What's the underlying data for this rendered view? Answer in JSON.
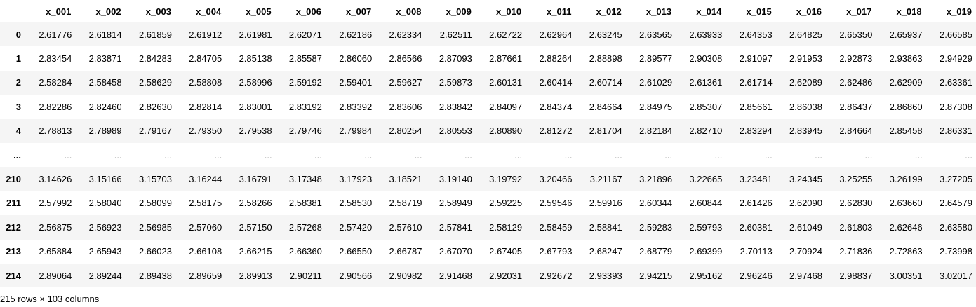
{
  "table": {
    "columns": [
      "x_001",
      "x_002",
      "x_003",
      "x_004",
      "x_005",
      "x_006",
      "x_007",
      "x_008",
      "x_009",
      "x_010",
      "x_011",
      "x_012",
      "x_013",
      "x_014",
      "x_015",
      "x_016",
      "x_017",
      "x_018",
      "x_019"
    ],
    "rows": [
      {
        "index": "0",
        "values": [
          "2.61776",
          "2.61814",
          "2.61859",
          "2.61912",
          "2.61981",
          "2.62071",
          "2.62186",
          "2.62334",
          "2.62511",
          "2.62722",
          "2.62964",
          "2.63245",
          "2.63565",
          "2.63933",
          "2.64353",
          "2.64825",
          "2.65350",
          "2.65937",
          "2.66585"
        ]
      },
      {
        "index": "1",
        "values": [
          "2.83454",
          "2.83871",
          "2.84283",
          "2.84705",
          "2.85138",
          "2.85587",
          "2.86060",
          "2.86566",
          "2.87093",
          "2.87661",
          "2.88264",
          "2.88898",
          "2.89577",
          "2.90308",
          "2.91097",
          "2.91953",
          "2.92873",
          "2.93863",
          "2.94929"
        ]
      },
      {
        "index": "2",
        "values": [
          "2.58284",
          "2.58458",
          "2.58629",
          "2.58808",
          "2.58996",
          "2.59192",
          "2.59401",
          "2.59627",
          "2.59873",
          "2.60131",
          "2.60414",
          "2.60714",
          "2.61029",
          "2.61361",
          "2.61714",
          "2.62089",
          "2.62486",
          "2.62909",
          "2.63361"
        ]
      },
      {
        "index": "3",
        "values": [
          "2.82286",
          "2.82460",
          "2.82630",
          "2.82814",
          "2.83001",
          "2.83192",
          "2.83392",
          "2.83606",
          "2.83842",
          "2.84097",
          "2.84374",
          "2.84664",
          "2.84975",
          "2.85307",
          "2.85661",
          "2.86038",
          "2.86437",
          "2.86860",
          "2.87308"
        ]
      },
      {
        "index": "4",
        "values": [
          "2.78813",
          "2.78989",
          "2.79167",
          "2.79350",
          "2.79538",
          "2.79746",
          "2.79984",
          "2.80254",
          "2.80553",
          "2.80890",
          "2.81272",
          "2.81704",
          "2.82184",
          "2.82710",
          "2.83294",
          "2.83945",
          "2.84664",
          "2.85458",
          "2.86331"
        ]
      },
      {
        "index": "...",
        "values": [
          "...",
          "...",
          "...",
          "...",
          "...",
          "...",
          "...",
          "...",
          "...",
          "...",
          "...",
          "...",
          "...",
          "...",
          "...",
          "...",
          "...",
          "...",
          "..."
        ],
        "ellipsis": true
      },
      {
        "index": "210",
        "values": [
          "3.14626",
          "3.15166",
          "3.15703",
          "3.16244",
          "3.16791",
          "3.17348",
          "3.17923",
          "3.18521",
          "3.19140",
          "3.19792",
          "3.20466",
          "3.21167",
          "3.21896",
          "3.22665",
          "3.23481",
          "3.24345",
          "3.25255",
          "3.26199",
          "3.27205"
        ]
      },
      {
        "index": "211",
        "values": [
          "2.57992",
          "2.58040",
          "2.58099",
          "2.58175",
          "2.58266",
          "2.58381",
          "2.58530",
          "2.58719",
          "2.58949",
          "2.59225",
          "2.59546",
          "2.59916",
          "2.60344",
          "2.60844",
          "2.61426",
          "2.62090",
          "2.62830",
          "2.63660",
          "2.64579"
        ]
      },
      {
        "index": "212",
        "values": [
          "2.56875",
          "2.56923",
          "2.56985",
          "2.57060",
          "2.57150",
          "2.57268",
          "2.57420",
          "2.57610",
          "2.57841",
          "2.58129",
          "2.58459",
          "2.58841",
          "2.59283",
          "2.59793",
          "2.60381",
          "2.61049",
          "2.61803",
          "2.62646",
          "2.63580"
        ]
      },
      {
        "index": "213",
        "values": [
          "2.65884",
          "2.65943",
          "2.66023",
          "2.66108",
          "2.66215",
          "2.66360",
          "2.66550",
          "2.66787",
          "2.67070",
          "2.67405",
          "2.67793",
          "2.68247",
          "2.68779",
          "2.69399",
          "2.70113",
          "2.70924",
          "2.71836",
          "2.72863",
          "2.73998"
        ]
      },
      {
        "index": "214",
        "values": [
          "2.89064",
          "2.89244",
          "2.89438",
          "2.89659",
          "2.89913",
          "2.90211",
          "2.90566",
          "2.90982",
          "2.91468",
          "2.92031",
          "2.92672",
          "2.93393",
          "2.94215",
          "2.95162",
          "2.96246",
          "2.97468",
          "2.98837",
          "3.00351",
          "3.02017"
        ]
      }
    ]
  },
  "footer": {
    "shape_text": "215 rows × 103 columns"
  },
  "colors": {
    "stripe": "#f5f5f5",
    "background": "#ffffff",
    "text": "#000000",
    "ellipsis_text": "#7a7a7a"
  }
}
